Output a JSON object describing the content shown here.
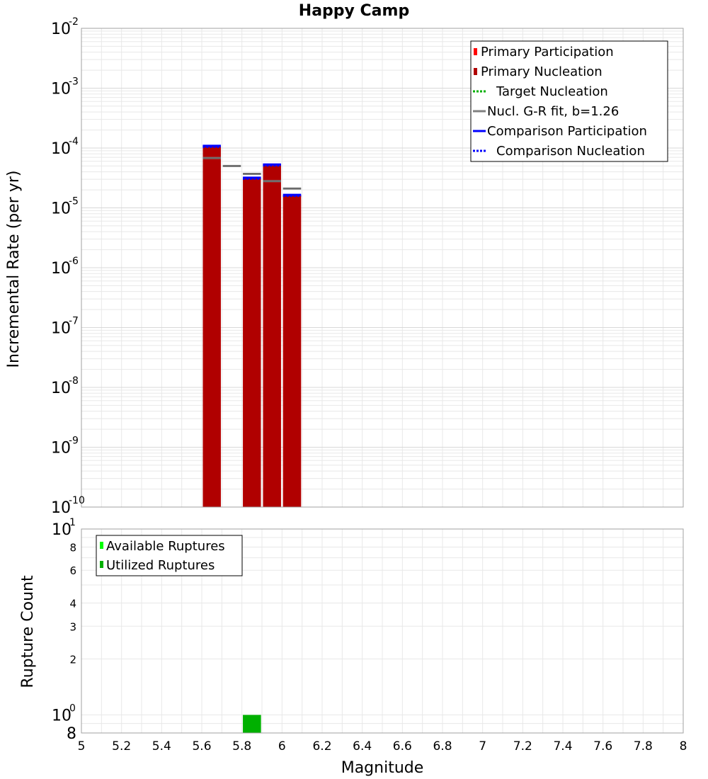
{
  "colors": {
    "primary_participation": "#ff0000",
    "primary_nucleation": "#b00000",
    "target_nucleation": "#00b000",
    "gr_fit": "#808080",
    "comparison": "#0000ff",
    "available_ruptures": "#00ff00",
    "utilized_ruptures": "#00b000",
    "plot_border": "#a0a0a0",
    "grid": "#e8e8e8"
  },
  "chart_data": [
    {
      "type": "bar",
      "title": "Happy Camp",
      "xlabel": "",
      "ylabel": "Incremental Rate (per yr)",
      "xlim": [
        5,
        8
      ],
      "ylim": [
        1e-10,
        0.01
      ],
      "y_scale": "log",
      "grid": true,
      "legend_position": "top-right",
      "y_ticks": [
        {
          "base": "10",
          "exp": "-2",
          "value": 0.01
        },
        {
          "base": "10",
          "exp": "-3",
          "value": 0.001
        },
        {
          "base": "10",
          "exp": "-4",
          "value": 0.0001
        },
        {
          "base": "10",
          "exp": "-5",
          "value": 1e-05
        },
        {
          "base": "10",
          "exp": "-6",
          "value": 1e-06
        },
        {
          "base": "10",
          "exp": "-7",
          "value": 1e-07
        },
        {
          "base": "10",
          "exp": "-8",
          "value": 1e-08
        },
        {
          "base": "10",
          "exp": "-9",
          "value": 1e-09
        },
        {
          "base": "10",
          "exp": "-10",
          "value": 1e-10
        }
      ],
      "legend": [
        {
          "label": "Primary Participation",
          "key": "primary_participation",
          "style": "bar"
        },
        {
          "label": "Primary Nucleation",
          "key": "primary_nucleation",
          "style": "bar"
        },
        {
          "label": "Target Nucleation",
          "key": "target_nucleation",
          "style": "dotted"
        },
        {
          "label": "Nucl. G-R fit, b=1.26",
          "key": "gr_fit",
          "style": "solid"
        },
        {
          "label": "Comparison Participation",
          "key": "comparison",
          "style": "solid"
        },
        {
          "label": "Comparison Nucleation",
          "key": "comparison",
          "style": "dotted"
        }
      ],
      "series": [
        {
          "name": "Primary Participation",
          "x": [
            5.65,
            5.85,
            5.95,
            6.05
          ],
          "values": [
            0.000105,
            3.1e-05,
            5.1e-05,
            1.6e-05
          ]
        },
        {
          "name": "Primary Nucleation",
          "x": [
            5.65,
            5.85,
            5.95,
            6.05
          ],
          "values": [
            0.000105,
            3.1e-05,
            5.1e-05,
            1.6e-05
          ]
        },
        {
          "name": "Nucl. G-R fit, b=1.26",
          "x": [
            5.65,
            5.75,
            5.85,
            5.95,
            6.05
          ],
          "values": [
            6.8e-05,
            5e-05,
            3.7e-05,
            2.8e-05,
            2.1e-05
          ]
        },
        {
          "name": "Comparison Participation",
          "x": [
            5.65,
            5.85,
            5.95,
            6.05
          ],
          "values": [
            0.000109,
            3.2e-05,
            5.3e-05,
            1.65e-05
          ]
        },
        {
          "name": "Comparison Nucleation",
          "x": [
            5.65,
            5.85,
            5.95,
            6.05
          ],
          "values": [
            0.000109,
            3.2e-05,
            5.3e-05,
            1.65e-05
          ]
        }
      ]
    },
    {
      "type": "bar",
      "title": "",
      "xlabel": "Magnitude",
      "ylabel": "Rupture Count",
      "xlim": [
        5,
        8
      ],
      "ylim": [
        0.8,
        10
      ],
      "y_scale": "log",
      "grid": true,
      "legend_position": "top-left",
      "x_tick_labels": [
        "5",
        "5.2",
        "5.4",
        "5.6",
        "5.8",
        "6",
        "6.2",
        "6.4",
        "6.6",
        "6.8",
        "7",
        "7.2",
        "7.4",
        "7.6",
        "7.8",
        "8"
      ],
      "y_ticks": [
        {
          "base": "10",
          "exp": "1",
          "value": 10
        },
        {
          "base": "10",
          "exp": "0",
          "value": 1
        }
      ],
      "y_minor_labels": [
        "8",
        "6",
        "4",
        "3",
        "2",
        "8"
      ],
      "legend": [
        {
          "label": "Available Ruptures",
          "key": "available_ruptures"
        },
        {
          "label": "Utilized Ruptures",
          "key": "utilized_ruptures"
        }
      ],
      "series": [
        {
          "name": "Available Ruptures",
          "x": [
            5.85
          ],
          "values": [
            1
          ]
        },
        {
          "name": "Utilized Ruptures",
          "x": [
            5.85
          ],
          "values": [
            1
          ]
        }
      ]
    }
  ]
}
